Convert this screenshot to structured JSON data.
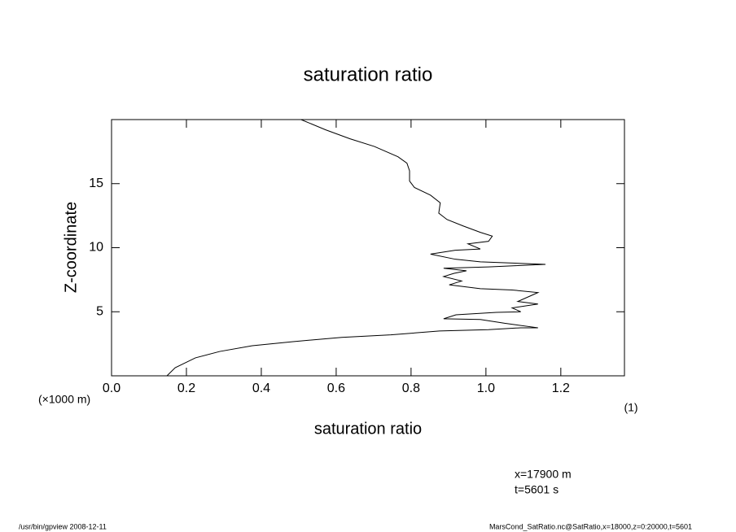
{
  "chart_data": {
    "type": "line",
    "title": "saturation ratio",
    "xlabel": "saturation ratio",
    "xunit": "(1)",
    "ylabel": "Z-coordinate",
    "yunit": "(×1000 m)",
    "annotations": [
      "x=17900 m",
      "t=5601 s"
    ],
    "footer_left": "/usr/bin/gpview   2008-12-11",
    "footer_right": "MarsCond_SatRatio.nc@SatRatio,x=18000,z=0:20000,t=5601",
    "color": "#000000",
    "xlim": [
      0,
      1.37
    ],
    "ylim": [
      0,
      20
    ],
    "xticks": [
      {
        "value": 0,
        "label": "0.0"
      },
      0.2,
      0.4,
      0.6,
      0.8,
      {
        "value": 1,
        "label": "1.0"
      },
      1.2
    ],
    "yticks": [
      5,
      10,
      15
    ],
    "x": [
      0.148,
      0.17,
      0.224,
      0.289,
      0.376,
      0.485,
      0.615,
      0.746,
      0.876,
      1.007,
      1.093,
      1.139,
      1.05,
      0.985,
      0.887,
      0.92,
      1.028,
      1.093,
      1.07,
      1.139,
      1.085,
      1.139,
      1.07,
      0.985,
      0.902,
      0.935,
      0.887,
      0.915,
      0.948,
      0.887,
      1.007,
      1.159,
      0.985,
      0.918,
      0.852,
      0.918,
      0.985,
      0.952,
      1.007,
      1.017,
      0.985,
      0.939,
      0.896,
      0.874,
      0.878,
      0.852,
      0.809,
      0.796,
      0.796,
      0.789,
      0.765,
      0.702,
      0.637,
      0.572,
      0.506
    ],
    "values": [
      0,
      0.63,
      1.4,
      1.9,
      2.35,
      2.67,
      3.0,
      3.2,
      3.5,
      3.6,
      3.75,
      3.75,
      4.1,
      4.4,
      4.45,
      4.76,
      4.95,
      5.0,
      5.3,
      5.6,
      5.8,
      6.5,
      6.7,
      6.8,
      7.1,
      7.4,
      7.75,
      8.0,
      8.2,
      8.4,
      8.5,
      8.7,
      8.9,
      9.1,
      9.5,
      9.8,
      9.9,
      10.3,
      10.5,
      10.9,
      11.2,
      11.7,
      12.2,
      12.7,
      13.5,
      14.1,
      14.7,
      15.2,
      16.0,
      16.6,
      17.1,
      17.9,
      18.5,
      19.2,
      20.0
    ]
  }
}
